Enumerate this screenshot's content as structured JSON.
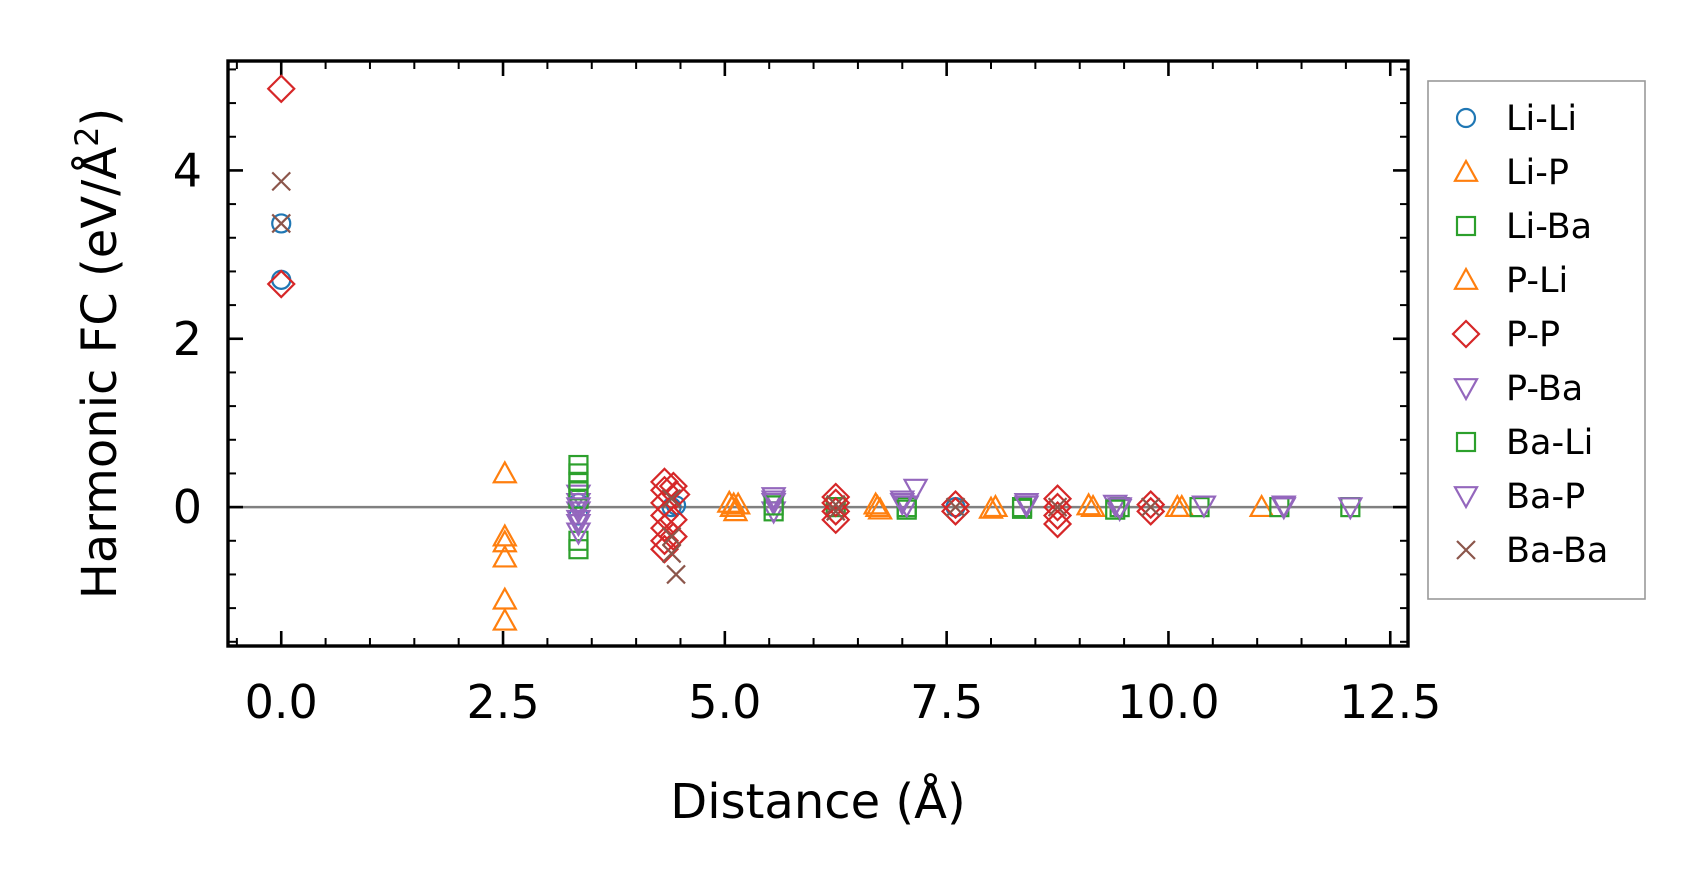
{
  "chart_data": {
    "type": "scatter",
    "title": "",
    "xlabel": "Distance (Å)",
    "ylabel": "Harmonic FC (eV/Å²)",
    "ylabel_parts": {
      "prefix": "Harmonic FC (eV/Å",
      "superscript": "2",
      "suffix": ")"
    },
    "xlim": [
      -0.6,
      12.7
    ],
    "ylim": [
      -1.65,
      5.3
    ],
    "x_ticks": [
      0.0,
      2.5,
      5.0,
      7.5,
      10.0,
      12.5
    ],
    "x_tick_labels": [
      "0.0",
      "2.5",
      "5.0",
      "7.5",
      "10.0",
      "12.5"
    ],
    "y_ticks": [
      0,
      2,
      4
    ],
    "y_tick_labels": [
      "0",
      "2",
      "4"
    ],
    "grid": false,
    "zero_line": true,
    "legend_position": "outside-right",
    "series": [
      {
        "name": "Li-Li",
        "marker": "circle",
        "color": "#1f77b4",
        "points": [
          [
            0.0,
            3.37
          ],
          [
            0.0,
            2.7
          ],
          [
            3.35,
            0.05
          ],
          [
            3.35,
            -0.1
          ],
          [
            4.4,
            0.0
          ],
          [
            4.45,
            0.02
          ],
          [
            7.6,
            0.0
          ]
        ]
      },
      {
        "name": "Li-P",
        "marker": "triangle-up",
        "color": "#ff7f0e",
        "points": [
          [
            2.52,
            0.4
          ],
          [
            2.52,
            -0.35
          ],
          [
            2.52,
            -0.42
          ],
          [
            2.52,
            -0.6
          ],
          [
            2.52,
            -1.1
          ],
          [
            2.52,
            -1.35
          ],
          [
            5.05,
            0.05
          ],
          [
            5.08,
            0.0
          ],
          [
            5.12,
            -0.05
          ],
          [
            5.15,
            0.03
          ],
          [
            6.7,
            0.03
          ],
          [
            6.75,
            -0.03
          ],
          [
            8.05,
            0.0
          ],
          [
            9.15,
            0.0
          ],
          [
            10.15,
            0.0
          ],
          [
            11.05,
            0.0
          ]
        ]
      },
      {
        "name": "Li-Ba",
        "marker": "square",
        "color": "#2ca02c",
        "points": [
          [
            3.35,
            0.5
          ],
          [
            3.35,
            0.4
          ],
          [
            3.35,
            0.3
          ],
          [
            3.35,
            -0.4
          ],
          [
            3.35,
            -0.5
          ],
          [
            5.55,
            -0.05
          ],
          [
            6.25,
            0.0
          ],
          [
            7.05,
            0.0
          ],
          [
            8.35,
            0.0
          ],
          [
            9.45,
            0.0
          ],
          [
            10.35,
            0.0
          ],
          [
            11.25,
            0.0
          ],
          [
            12.05,
            0.0
          ]
        ]
      },
      {
        "name": "P-Li",
        "marker": "triangle-up",
        "color": "#ff7f0e",
        "points": [
          [
            5.1,
            0.03
          ],
          [
            6.72,
            0.0
          ],
          [
            8.0,
            -0.02
          ],
          [
            9.1,
            0.02
          ],
          [
            10.1,
            0.0
          ]
        ]
      },
      {
        "name": "P-P",
        "marker": "diamond",
        "color": "#d62728",
        "points": [
          [
            0.0,
            4.97
          ],
          [
            0.0,
            2.65
          ],
          [
            4.32,
            0.3
          ],
          [
            4.32,
            0.2
          ],
          [
            4.32,
            0.05
          ],
          [
            4.32,
            -0.1
          ],
          [
            4.32,
            -0.25
          ],
          [
            4.32,
            -0.4
          ],
          [
            4.32,
            -0.5
          ],
          [
            4.42,
            0.25
          ],
          [
            4.42,
            -0.15
          ],
          [
            4.42,
            -0.35
          ],
          [
            4.45,
            0.15
          ],
          [
            6.25,
            0.12
          ],
          [
            6.25,
            0.05
          ],
          [
            6.25,
            -0.05
          ],
          [
            6.25,
            -0.15
          ],
          [
            7.6,
            0.03
          ],
          [
            7.6,
            -0.05
          ],
          [
            8.75,
            0.1
          ],
          [
            8.75,
            0.0
          ],
          [
            8.75,
            -0.1
          ],
          [
            8.75,
            -0.2
          ],
          [
            9.8,
            0.03
          ],
          [
            9.8,
            -0.05
          ]
        ]
      },
      {
        "name": "P-Ba",
        "marker": "triangle-down",
        "color": "#9467bd",
        "points": [
          [
            3.35,
            0.15
          ],
          [
            3.35,
            0.05
          ],
          [
            3.35,
            -0.05
          ],
          [
            3.35,
            -0.2
          ],
          [
            3.35,
            -0.3
          ],
          [
            5.55,
            0.12
          ],
          [
            5.55,
            0.05
          ],
          [
            5.55,
            -0.05
          ],
          [
            7.0,
            0.08
          ],
          [
            7.05,
            0.02
          ],
          [
            7.15,
            0.22
          ],
          [
            8.4,
            0.05
          ],
          [
            9.4,
            0.03
          ],
          [
            9.45,
            -0.02
          ],
          [
            10.4,
            0.02
          ],
          [
            11.3,
            0.0
          ],
          [
            12.05,
            0.0
          ]
        ]
      },
      {
        "name": "Ba-Li",
        "marker": "square",
        "color": "#2ca02c",
        "points": [
          [
            3.35,
            0.2
          ],
          [
            3.35,
            0.1
          ],
          [
            5.55,
            0.02
          ],
          [
            7.05,
            -0.03
          ],
          [
            8.35,
            -0.02
          ],
          [
            9.4,
            -0.03
          ]
        ]
      },
      {
        "name": "Ba-P",
        "marker": "triangle-down",
        "color": "#9467bd",
        "points": [
          [
            3.35,
            0.0
          ],
          [
            3.35,
            -0.15
          ],
          [
            5.55,
            0.08
          ],
          [
            7.0,
            0.05
          ],
          [
            8.4,
            0.02
          ],
          [
            9.45,
            0.0
          ],
          [
            11.3,
            0.02
          ]
        ]
      },
      {
        "name": "Ba-Ba",
        "marker": "x",
        "color": "#8c564b",
        "points": [
          [
            0.0,
            3.87
          ],
          [
            0.0,
            3.37
          ],
          [
            4.4,
            0.1
          ],
          [
            4.4,
            -0.35
          ],
          [
            4.4,
            -0.55
          ],
          [
            4.45,
            -0.8
          ],
          [
            6.25,
            0.03
          ],
          [
            6.25,
            -0.05
          ],
          [
            7.6,
            0.0
          ],
          [
            8.75,
            0.0
          ],
          [
            9.8,
            0.0
          ]
        ]
      }
    ]
  }
}
